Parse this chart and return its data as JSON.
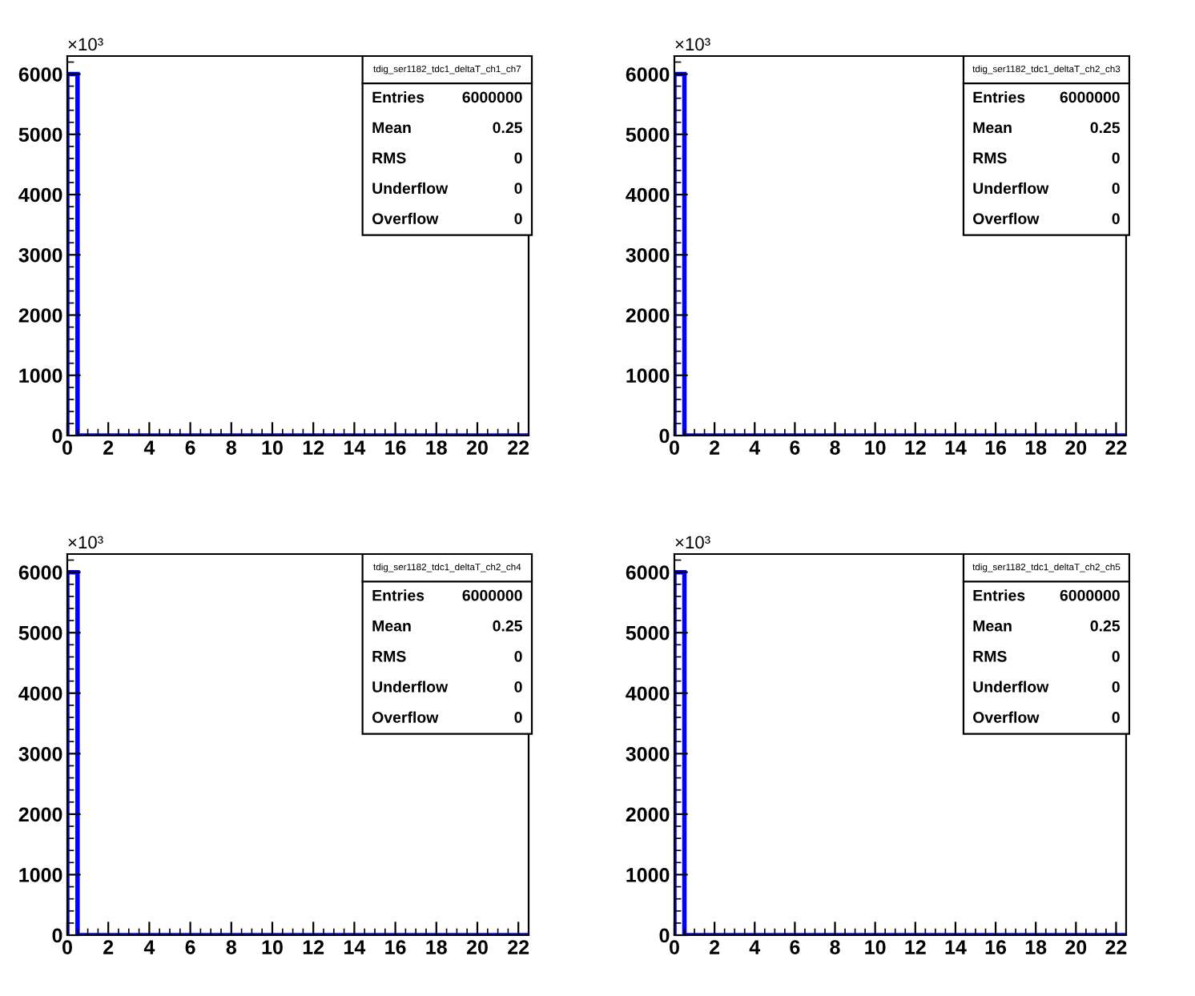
{
  "chart_data": [
    {
      "type": "histogram",
      "title": "tdig_ser1182_tdc1_deltaT_ch1_ch7",
      "bins": [
        0,
        0.5,
        1,
        1.5,
        2,
        2.5,
        3,
        3.5,
        4,
        4.5,
        5,
        5.5,
        6,
        6.5,
        7,
        7.5,
        8,
        8.5,
        9,
        9.5,
        10,
        10.5,
        11,
        11.5,
        12,
        12.5,
        13,
        13.5,
        14,
        14.5,
        15,
        15.5,
        16,
        16.5,
        17,
        17.5,
        18,
        18.5,
        19,
        19.5,
        20,
        20.5,
        21,
        21.5,
        22,
        22.5
      ],
      "values": [
        6000,
        0,
        0,
        0,
        0,
        0,
        0,
        0,
        0,
        0,
        0,
        0,
        0,
        0,
        0,
        0,
        0,
        0,
        0,
        0,
        0,
        0,
        0,
        0,
        0,
        0,
        0,
        0,
        0,
        0,
        0,
        0,
        0,
        0,
        0,
        0,
        0,
        0,
        0,
        0,
        0,
        0,
        0,
        0,
        0
      ],
      "color": "#0000ff",
      "xlim": [
        0,
        22.5
      ],
      "xticks": [
        0,
        2,
        4,
        6,
        8,
        10,
        12,
        14,
        16,
        18,
        20,
        22
      ],
      "ylim": [
        0,
        6300
      ],
      "yticks": [
        0,
        1000,
        2000,
        3000,
        4000,
        5000,
        6000
      ],
      "ylabel": "×10³",
      "annotations": [
        "Entries",
        "6000000",
        "Mean",
        "0.25",
        "RMS",
        "0",
        "Underflow",
        "0",
        "Overflow",
        "0"
      ],
      "grid": false
    },
    {
      "type": "histogram",
      "title": "tdig_ser1182_tdc1_deltaT_ch2_ch3",
      "bins": [
        0,
        0.5,
        1,
        1.5,
        2,
        2.5,
        3,
        3.5,
        4,
        4.5,
        5,
        5.5,
        6,
        6.5,
        7,
        7.5,
        8,
        8.5,
        9,
        9.5,
        10,
        10.5,
        11,
        11.5,
        12,
        12.5,
        13,
        13.5,
        14,
        14.5,
        15,
        15.5,
        16,
        16.5,
        17,
        17.5,
        18,
        18.5,
        19,
        19.5,
        20,
        20.5,
        21,
        21.5,
        22,
        22.5
      ],
      "values": [
        6000,
        0,
        0,
        0,
        0,
        0,
        0,
        0,
        0,
        0,
        0,
        0,
        0,
        0,
        0,
        0,
        0,
        0,
        0,
        0,
        0,
        0,
        0,
        0,
        0,
        0,
        0,
        0,
        0,
        0,
        0,
        0,
        0,
        0,
        0,
        0,
        0,
        0,
        0,
        0,
        0,
        0,
        0,
        0,
        0
      ],
      "color": "#0000ff",
      "xlim": [
        0,
        22.5
      ],
      "xticks": [
        0,
        2,
        4,
        6,
        8,
        10,
        12,
        14,
        16,
        18,
        20,
        22
      ],
      "ylim": [
        0,
        6300
      ],
      "yticks": [
        0,
        1000,
        2000,
        3000,
        4000,
        5000,
        6000
      ],
      "ylabel": "×10³",
      "annotations": [
        "Entries",
        "6000000",
        "Mean",
        "0.25",
        "RMS",
        "0",
        "Underflow",
        "0",
        "Overflow",
        "0"
      ],
      "grid": false
    },
    {
      "type": "histogram",
      "title": "tdig_ser1182_tdc1_deltaT_ch2_ch4",
      "bins": [
        0,
        0.5,
        1,
        1.5,
        2,
        2.5,
        3,
        3.5,
        4,
        4.5,
        5,
        5.5,
        6,
        6.5,
        7,
        7.5,
        8,
        8.5,
        9,
        9.5,
        10,
        10.5,
        11,
        11.5,
        12,
        12.5,
        13,
        13.5,
        14,
        14.5,
        15,
        15.5,
        16,
        16.5,
        17,
        17.5,
        18,
        18.5,
        19,
        19.5,
        20,
        20.5,
        21,
        21.5,
        22,
        22.5
      ],
      "values": [
        6000,
        0,
        0,
        0,
        0,
        0,
        0,
        0,
        0,
        0,
        0,
        0,
        0,
        0,
        0,
        0,
        0,
        0,
        0,
        0,
        0,
        0,
        0,
        0,
        0,
        0,
        0,
        0,
        0,
        0,
        0,
        0,
        0,
        0,
        0,
        0,
        0,
        0,
        0,
        0,
        0,
        0,
        0,
        0,
        0
      ],
      "color": "#0000ff",
      "xlim": [
        0,
        22.5
      ],
      "xticks": [
        0,
        2,
        4,
        6,
        8,
        10,
        12,
        14,
        16,
        18,
        20,
        22
      ],
      "ylim": [
        0,
        6300
      ],
      "yticks": [
        0,
        1000,
        2000,
        3000,
        4000,
        5000,
        6000
      ],
      "ylabel": "×10³",
      "annotations": [
        "Entries",
        "6000000",
        "Mean",
        "0.25",
        "RMS",
        "0",
        "Underflow",
        "0",
        "Overflow",
        "0"
      ],
      "grid": false
    },
    {
      "type": "histogram",
      "title": "tdig_ser1182_tdc1_deltaT_ch2_ch5",
      "bins": [
        0,
        0.5,
        1,
        1.5,
        2,
        2.5,
        3,
        3.5,
        4,
        4.5,
        5,
        5.5,
        6,
        6.5,
        7,
        7.5,
        8,
        8.5,
        9,
        9.5,
        10,
        10.5,
        11,
        11.5,
        12,
        12.5,
        13,
        13.5,
        14,
        14.5,
        15,
        15.5,
        16,
        16.5,
        17,
        17.5,
        18,
        18.5,
        19,
        19.5,
        20,
        20.5,
        21,
        21.5,
        22,
        22.5
      ],
      "values": [
        6000,
        0,
        0,
        0,
        0,
        0,
        0,
        0,
        0,
        0,
        0,
        0,
        0,
        0,
        0,
        0,
        0,
        0,
        0,
        0,
        0,
        0,
        0,
        0,
        0,
        0,
        0,
        0,
        0,
        0,
        0,
        0,
        0,
        0,
        0,
        0,
        0,
        0,
        0,
        0,
        0,
        0,
        0,
        0,
        0
      ],
      "color": "#0000ff",
      "xlim": [
        0,
        22.5
      ],
      "xticks": [
        0,
        2,
        4,
        6,
        8,
        10,
        12,
        14,
        16,
        18,
        20,
        22
      ],
      "ylim": [
        0,
        6300
      ],
      "yticks": [
        0,
        1000,
        2000,
        3000,
        4000,
        5000,
        6000
      ],
      "ylabel": "×10³",
      "annotations": [
        "Entries",
        "6000000",
        "Mean",
        "0.25",
        "RMS",
        "0",
        "Underflow",
        "0",
        "Overflow",
        "0"
      ],
      "grid": false
    }
  ]
}
